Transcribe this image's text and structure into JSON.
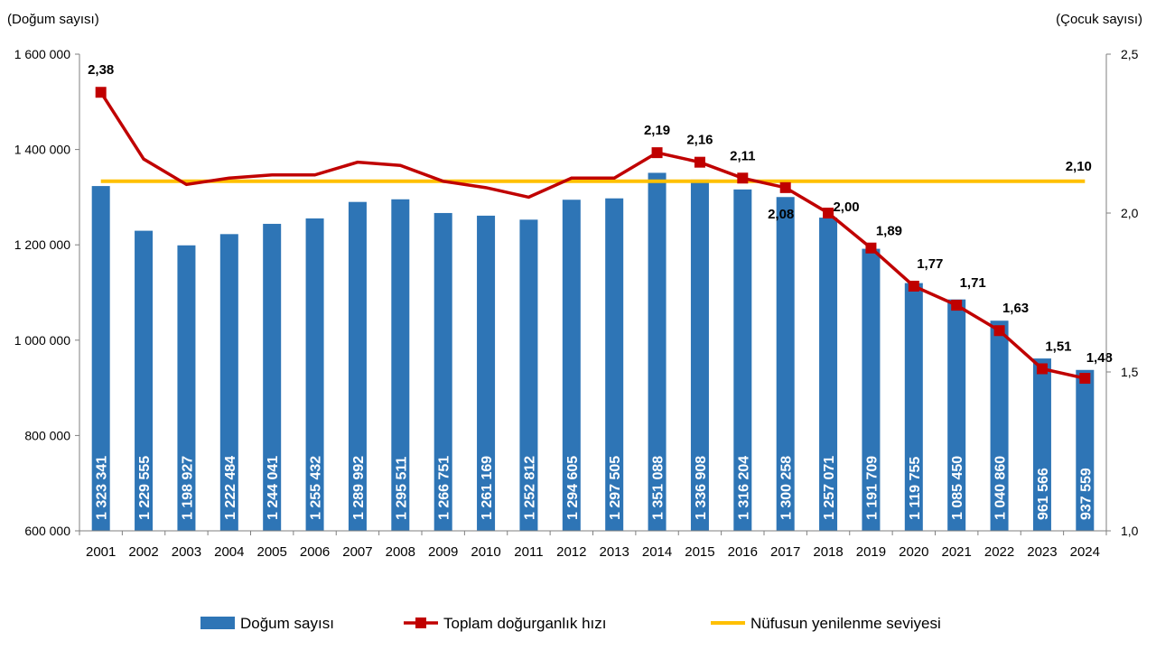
{
  "chart_data": {
    "type": "bar",
    "y_left_title": "(Doğum sayısı)",
    "y_right_title": "(Çocuk sayısı)",
    "ylim_left": [
      600000,
      1600000
    ],
    "ylim_right": [
      1.0,
      2.5
    ],
    "left_ticks": [
      "1 600 000",
      "1 400 000",
      "1 200 000",
      "1 000 000",
      "800 000",
      "600 000"
    ],
    "right_ticks": [
      "2,5",
      "2,0",
      "1,5",
      "1,0"
    ],
    "categories": [
      "2001",
      "2002",
      "2003",
      "2004",
      "2005",
      "2006",
      "2007",
      "2008",
      "2009",
      "2010",
      "2011",
      "2012",
      "2013",
      "2014",
      "2015",
      "2016",
      "2017",
      "2018",
      "2019",
      "2020",
      "2021",
      "2022",
      "2023",
      "2024"
    ],
    "series": [
      {
        "name": "Doğum sayısı",
        "kind": "bar",
        "axis": "left",
        "color": "#2E75B6",
        "values": [
          1323341,
          1229555,
          1198927,
          1222484,
          1244041,
          1255432,
          1289992,
          1295511,
          1266751,
          1261169,
          1252812,
          1294605,
          1297505,
          1351088,
          1336908,
          1316204,
          1300258,
          1257071,
          1191709,
          1119755,
          1085450,
          1040860,
          961566,
          937559
        ],
        "labels": [
          "1 323 341",
          "1 229 555",
          "1 198 927",
          "1 222 484",
          "1 244 041",
          "1 255 432",
          "1 289 992",
          "1 295 511",
          "1 266 751",
          "1 261 169",
          "1 252 812",
          "1 294 605",
          "1 297 505",
          "1 351 088",
          "1 336 908",
          "1 316 204",
          "1 300 258",
          "1 257 071",
          "1 191 709",
          "1 119 755",
          "1 085 450",
          "1 040 860",
          "961 566",
          "937 559"
        ]
      },
      {
        "name": "Toplam doğurganlık hızı",
        "kind": "line",
        "axis": "right",
        "color": "#C00000",
        "values": [
          2.38,
          2.17,
          2.09,
          2.11,
          2.12,
          2.12,
          2.16,
          2.15,
          2.1,
          2.08,
          2.05,
          2.11,
          2.11,
          2.19,
          2.16,
          2.11,
          2.08,
          2.0,
          1.89,
          1.77,
          1.71,
          1.63,
          1.51,
          1.48
        ],
        "labels": [
          "2,38",
          "",
          "",
          "",
          "",
          "",
          "",
          "",
          "",
          "",
          "",
          "",
          "",
          "2,19",
          "2,16",
          "2,11",
          "2,08",
          "2,00",
          "1,89",
          "1,77",
          "1,71",
          "1,63",
          "1,51",
          "1,48"
        ]
      },
      {
        "name": "Nüfusun yenilenme seviyesi",
        "kind": "line",
        "axis": "right",
        "color": "#FFC000",
        "value": 2.1,
        "label": "2,10"
      }
    ],
    "legend": "bottom"
  }
}
